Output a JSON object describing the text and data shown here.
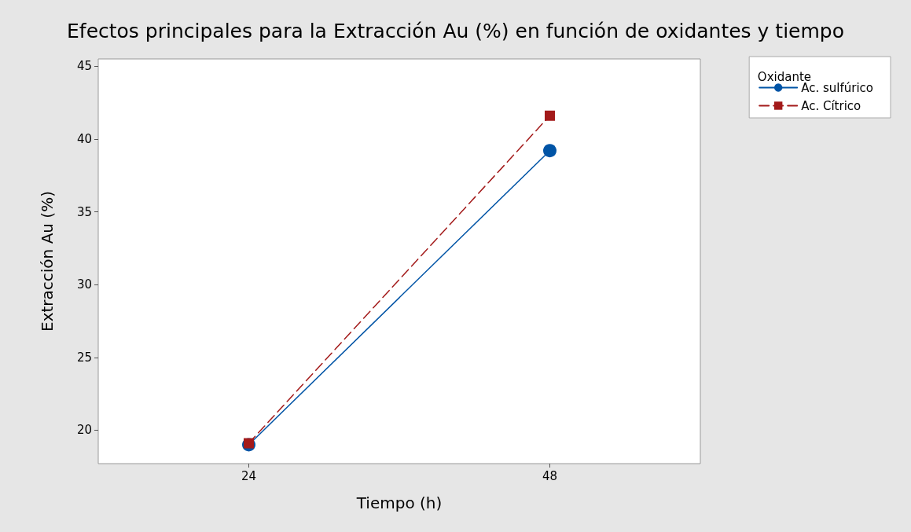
{
  "chart_data": {
    "type": "line",
    "title": "Efectos principales para la Extracción Au (%) en función de oxidantes y tiempo",
    "xlabel": "Tiempo (h)",
    "ylabel": "Extracción Au (%)",
    "legend_title": "Oxidante",
    "categories": [
      "24",
      "48"
    ],
    "series": [
      {
        "name": "Ac. sulfúrico",
        "color": "#0054a6",
        "values": [
          19.0,
          39.2
        ],
        "marker": "circle",
        "line_style": "solid"
      },
      {
        "name": "Ac. Cítrico",
        "color": "#a31a1a",
        "values": [
          19.1,
          41.6
        ],
        "marker": "square",
        "line_style": "dashed"
      }
    ],
    "ylim": [
      17.7,
      45.5
    ],
    "yticks": [
      20,
      25,
      30,
      35,
      40,
      45
    ],
    "grid": false,
    "legend": "top right"
  }
}
